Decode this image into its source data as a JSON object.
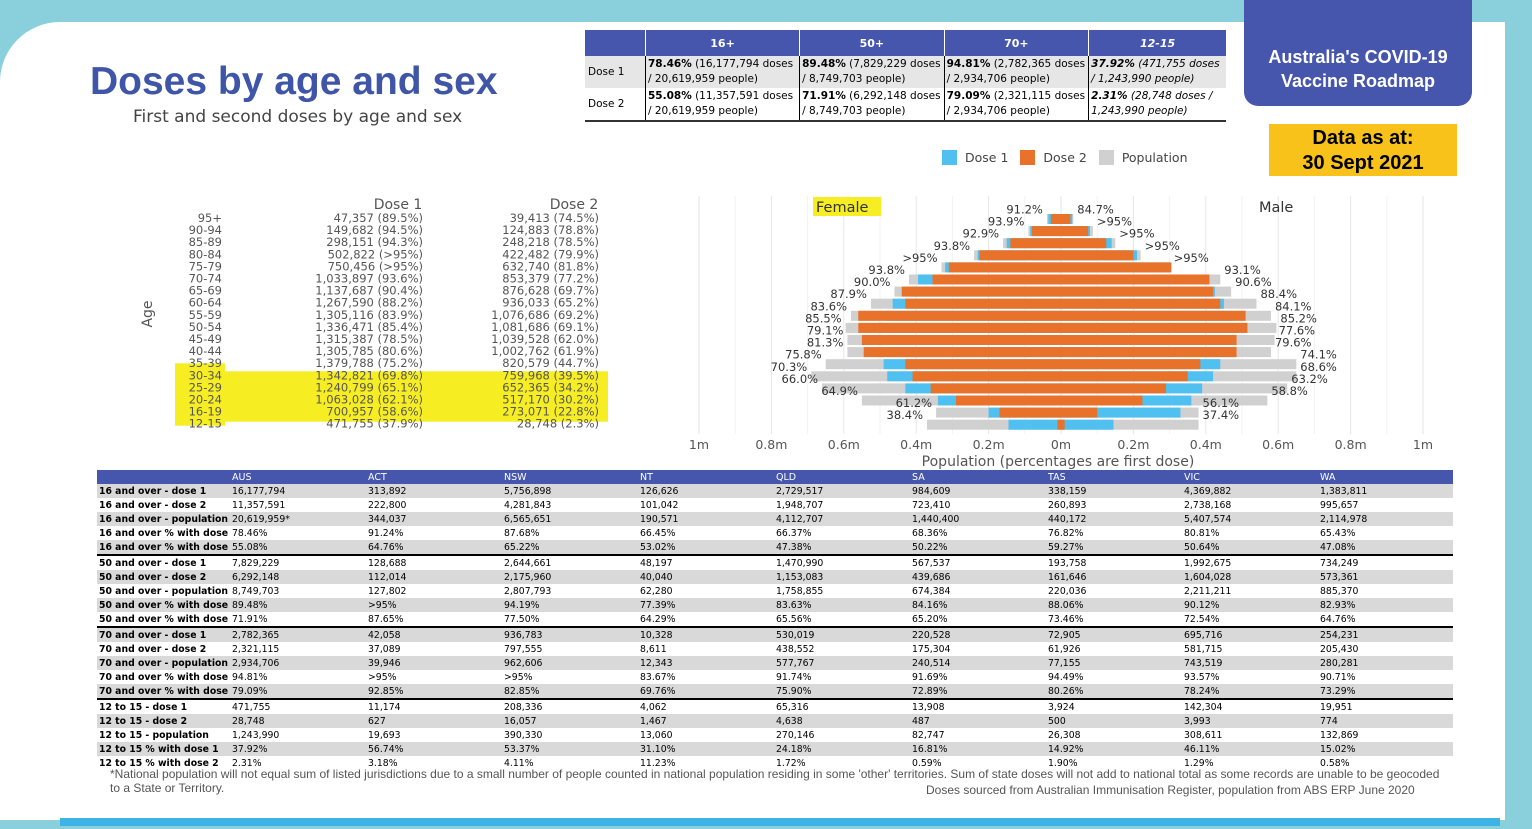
{
  "header": {
    "title": "Doses by age and sex",
    "subtitle": "First and second doses by age and sex",
    "roadmap_line1": "Australia's COVID-19",
    "roadmap_line2": "Vaccine Roadmap",
    "data_as_at_label": "Data as at:",
    "data_as_at_date": "30 Sept 2021"
  },
  "summary": {
    "columns": [
      "16+",
      "50+",
      "70+",
      "12-15"
    ],
    "rows": [
      {
        "label": "Dose 1",
        "cells": [
          {
            "pct": "78.46%",
            "rest": " (16,177,794 doses / 20,619,959 people)"
          },
          {
            "pct": "89.48%",
            "rest": " (7,829,229 doses / 8,749,703 people)"
          },
          {
            "pct": "94.81%",
            "rest": " (2,782,365 doses / 2,934,706 people)"
          },
          {
            "pct": "37.92%",
            "rest": " (471,755 doses / 1,243,990 people)"
          }
        ]
      },
      {
        "label": "Dose 2",
        "cells": [
          {
            "pct": "55.08%",
            "rest": " (11,357,591 doses / 20,619,959 people)"
          },
          {
            "pct": "71.91%",
            "rest": " (6,292,148 doses / 8,749,703 people)"
          },
          {
            "pct": "79.09%",
            "rest": " (2,321,115 doses / 2,934,706 people)"
          },
          {
            "pct": "2.31%",
            "rest": " (28,748 doses / 1,243,990 people)"
          }
        ]
      }
    ]
  },
  "legend": {
    "dose1": "Dose 1",
    "dose2": "Dose 2",
    "population": "Population"
  },
  "colors": {
    "dose1": "#4fc0f0",
    "dose2": "#e8722a",
    "population": "#d0d0d0",
    "highlight": "#f6ee22",
    "accent": "#4656ad"
  },
  "chart_data": {
    "type": "bar",
    "subtype": "population-pyramid",
    "xlabel": "Population (percentages are first dose)",
    "ylabel": "Age",
    "left_label": "Female",
    "right_label": "Male",
    "xlim": [
      -1000000,
      1000000
    ],
    "x_ticks": [
      "1m",
      "0.8m",
      "0.6m",
      "0.4m",
      "0.2m",
      "0m",
      "0.2m",
      "0.4m",
      "0.6m",
      "0.8m",
      "1m"
    ],
    "x_tick_values": [
      -1000000,
      -800000,
      -600000,
      -400000,
      -200000,
      0,
      200000,
      400000,
      600000,
      800000,
      1000000
    ],
    "table_headers": {
      "dose1": "Dose 1",
      "dose2": "Dose 2"
    },
    "categories": [
      "95+",
      "90-94",
      "85-89",
      "80-84",
      "75-79",
      "70-74",
      "65-69",
      "60-64",
      "55-59",
      "50-54",
      "45-49",
      "40-44",
      "35-39",
      "30-34",
      "25-29",
      "20-24",
      "16-19",
      "12-15"
    ],
    "highlighted": [
      "30-34",
      "25-29",
      "20-24",
      "16-19"
    ],
    "dose1_text": [
      "47,357 (89.5%)",
      "149,682 (94.5%)",
      "298,151 (94.3%)",
      "502,822 (>95%)",
      "750,456 (>95%)",
      "1,033,897 (93.6%)",
      "1,137,687 (90.4%)",
      "1,267,590 (88.2%)",
      "1,305,116 (83.9%)",
      "1,336,471 (85.4%)",
      "1,315,387 (78.5%)",
      "1,305,785 (80.6%)",
      "1,379,788 (75.2%)",
      "1,342,821 (69.8%)",
      "1,240,799 (65.1%)",
      "1,063,028 (62.1%)",
      "700,957 (58.6%)",
      "471,755 (37.9%)"
    ],
    "dose2_text": [
      "39,413 (74.5%)",
      "124,883 (78.8%)",
      "248,218 (78.5%)",
      "422,482 (79.9%)",
      "632,740 (81.8%)",
      "853,379 (77.2%)",
      "876,628 (69.7%)",
      "936,033 (65.2%)",
      "1,076,686 (69.2%)",
      "1,081,686 (69.1%)",
      "1,039,528 (62.0%)",
      "1,002,762 (61.9%)",
      "820,579 (44.7%)",
      "759,968 (39.5%)",
      "652,365 (34.2%)",
      "517,170 (30.2%)",
      "273,071 (22.8%)",
      "28,748 (2.3%)"
    ],
    "series": [
      {
        "name": "Female Population",
        "values": [
          39000,
          90000,
          160000,
          240000,
          330000,
          420000,
          460000,
          525000,
          580000,
          595000,
          590000,
          590000,
          650000,
          690000,
          660000,
          550000,
          345000,
          370000
        ]
      },
      {
        "name": "Female Dose 1",
        "values": [
          35000,
          85000,
          150000,
          230000,
          320000,
          395000,
          415000,
          465000,
          485000,
          505000,
          465000,
          475000,
          490000,
          480000,
          430000,
          340000,
          200000,
          145000
        ]
      },
      {
        "name": "Female Dose 2",
        "values": [
          28000,
          80000,
          140000,
          225000,
          310000,
          355000,
          440000,
          430000,
          560000,
          560000,
          550000,
          545000,
          430000,
          410000,
          360000,
          290000,
          170000,
          10000
        ]
      },
      {
        "name": "Male Population",
        "values": [
          34000,
          88000,
          150000,
          220000,
          300000,
          440000,
          470000,
          540000,
          580000,
          595000,
          590000,
          580000,
          650000,
          650000,
          625000,
          570000,
          380000,
          380000
        ]
      },
      {
        "name": "Male Dose 1",
        "values": [
          31000,
          80000,
          140000,
          210000,
          300000,
          410000,
          425000,
          450000,
          475000,
          490000,
          460000,
          480000,
          440000,
          420000,
          390000,
          360000,
          330000,
          145000
        ]
      },
      {
        "name": "Male Dose 2",
        "values": [
          26000,
          75000,
          125000,
          200000,
          305000,
          410000,
          420000,
          440000,
          510000,
          515000,
          485000,
          485000,
          385000,
          350000,
          290000,
          225000,
          100000,
          10000
        ]
      }
    ],
    "female_pct_labels": [
      "91.2%",
      "93.9%",
      "92.9%",
      "93.8%",
      ">95%",
      "93.8%",
      "90.0%",
      "87.9%",
      "83.6%",
      "85.5%",
      "79.1%",
      "81.3%",
      "75.8%",
      "70.3%",
      "66.0%",
      "64.9%",
      "61.2%",
      "38.4%"
    ],
    "male_pct_labels": [
      "84.7%",
      ">95%",
      ">95%",
      ">95%",
      ">95%",
      "93.1%",
      "90.6%",
      "88.4%",
      "84.1%",
      "85.2%",
      "77.6%",
      "79.6%",
      "74.1%",
      "68.6%",
      "63.2%",
      "58.8%",
      "56.1%",
      "37.4%"
    ]
  },
  "jurisdictions": {
    "columns": [
      "",
      "AUS",
      "ACT",
      "NSW",
      "NT",
      "QLD",
      "SA",
      "TAS",
      "VIC",
      "WA"
    ],
    "rows": [
      {
        "label": "16 and over - dose 1",
        "values": [
          "16,177,794",
          "313,892",
          "5,756,898",
          "126,626",
          "2,729,517",
          "984,609",
          "338,159",
          "4,369,882",
          "1,383,811"
        ]
      },
      {
        "label": "16 and over - dose 2",
        "values": [
          "11,357,591",
          "222,800",
          "4,281,843",
          "101,042",
          "1,948,707",
          "723,410",
          "260,893",
          "2,738,168",
          "995,657"
        ]
      },
      {
        "label": "16 and over - population",
        "values": [
          "20,619,959*",
          "344,037",
          "6,565,651",
          "190,571",
          "4,112,707",
          "1,440,400",
          "440,172",
          "5,407,574",
          "2,114,978"
        ]
      },
      {
        "label": "16 and over % with dose 1",
        "values": [
          "78.46%",
          "91.24%",
          "87.68%",
          "66.45%",
          "66.37%",
          "68.36%",
          "76.82%",
          "80.81%",
          "65.43%"
        ]
      },
      {
        "label": "16 and over % with dose 2",
        "values": [
          "55.08%",
          "64.76%",
          "65.22%",
          "53.02%",
          "47.38%",
          "50.22%",
          "59.27%",
          "50.64%",
          "47.08%"
        ]
      },
      {
        "label": "50 and over - dose 1",
        "values": [
          "7,829,229",
          "128,688",
          "2,644,661",
          "48,197",
          "1,470,990",
          "567,537",
          "193,758",
          "1,992,675",
          "734,249"
        ]
      },
      {
        "label": "50 and over - dose 2",
        "values": [
          "6,292,148",
          "112,014",
          "2,175,960",
          "40,040",
          "1,153,083",
          "439,686",
          "161,646",
          "1,604,028",
          "573,361"
        ]
      },
      {
        "label": "50 and over - population",
        "values": [
          "8,749,703",
          "127,802",
          "2,807,793",
          "62,280",
          "1,758,855",
          "674,384",
          "220,036",
          "2,211,211",
          "885,370"
        ]
      },
      {
        "label": "50 and over % with dose 1",
        "values": [
          "89.48%",
          ">95%",
          "94.19%",
          "77.39%",
          "83.63%",
          "84.16%",
          "88.06%",
          "90.12%",
          "82.93%"
        ]
      },
      {
        "label": "50 and over % with dose 2",
        "values": [
          "71.91%",
          "87.65%",
          "77.50%",
          "64.29%",
          "65.56%",
          "65.20%",
          "73.46%",
          "72.54%",
          "64.76%"
        ]
      },
      {
        "label": "70 and over - dose 1",
        "values": [
          "2,782,365",
          "42,058",
          "936,783",
          "10,328",
          "530,019",
          "220,528",
          "72,905",
          "695,716",
          "254,231"
        ]
      },
      {
        "label": "70 and over - dose 2",
        "values": [
          "2,321,115",
          "37,089",
          "797,555",
          "8,611",
          "438,552",
          "175,304",
          "61,926",
          "581,715",
          "205,430"
        ]
      },
      {
        "label": "70 and over - population",
        "values": [
          "2,934,706",
          "39,946",
          "962,606",
          "12,343",
          "577,767",
          "240,514",
          "77,155",
          "743,519",
          "280,281"
        ]
      },
      {
        "label": "70 and over % with dose 1",
        "values": [
          "94.81%",
          ">95%",
          ">95%",
          "83.67%",
          "91.74%",
          "91.69%",
          "94.49%",
          "93.57%",
          "90.71%"
        ]
      },
      {
        "label": "70 and over % with dose 2",
        "values": [
          "79.09%",
          "92.85%",
          "82.85%",
          "69.76%",
          "75.90%",
          "72.89%",
          "80.26%",
          "78.24%",
          "73.29%"
        ]
      },
      {
        "label": "12 to 15 - dose 1",
        "values": [
          "471,755",
          "11,174",
          "208,336",
          "4,062",
          "65,316",
          "13,908",
          "3,924",
          "142,304",
          "19,951"
        ]
      },
      {
        "label": "12 to 15 - dose 2",
        "values": [
          "28,748",
          "627",
          "16,057",
          "1,467",
          "4,638",
          "487",
          "500",
          "3,993",
          "774"
        ]
      },
      {
        "label": "12 to 15 - population",
        "values": [
          "1,243,990",
          "19,693",
          "390,330",
          "13,060",
          "270,146",
          "82,747",
          "26,308",
          "308,611",
          "132,869"
        ]
      },
      {
        "label": "12 to 15 % with dose 1",
        "values": [
          "37.92%",
          "56.74%",
          "53.37%",
          "31.10%",
          "24.18%",
          "16.81%",
          "14.92%",
          "46.11%",
          "15.02%"
        ]
      },
      {
        "label": "12 to 15 % with dose 2",
        "values": [
          "2.31%",
          "3.18%",
          "4.11%",
          "11.23%",
          "1.72%",
          "0.59%",
          "1.90%",
          "1.29%",
          "0.58%"
        ]
      }
    ]
  },
  "footer": {
    "footnote": "*National population will not equal sum of listed jurisdictions due to a small number of people counted in national population residing in some 'other' territories. Sum of state doses will not add to national total as some records are unable to be geocoded to a State or Territory.",
    "source": "Doses sourced from Australian Immunisation Register, population from ABS ERP June 2020"
  }
}
